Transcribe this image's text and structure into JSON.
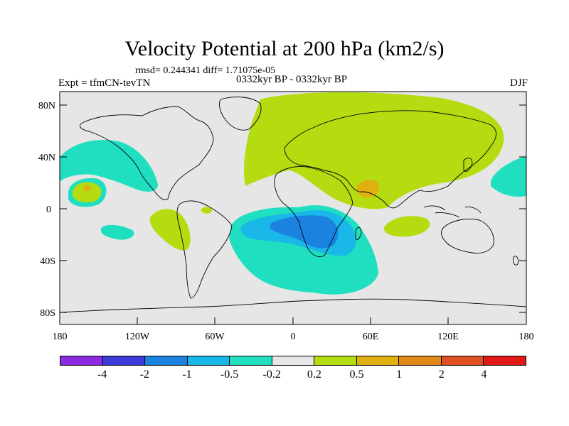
{
  "title": "Velocity Potential at 200 hPa (km2/s)",
  "stats": "rmsd= 0.244341 diff= 1.71075e-05",
  "expt": "Expt = tfmCN-tevTN",
  "period": "0332kyr BP - 0332kyr BP",
  "season": "DJF",
  "map": {
    "projection": "cylindrical-equidistant",
    "lon_range": [
      -180,
      180
    ],
    "lat_range": [
      -90,
      90
    ],
    "background_fill": "#e6e6e6",
    "lat_ticks": [
      "80N",
      "40N",
      "0",
      "40S",
      "80S"
    ],
    "lon_ticks": [
      "180",
      "120W",
      "60W",
      "0",
      "60E",
      "120E",
      "180"
    ]
  },
  "colorbar": {
    "colors": [
      "#8a2be2",
      "#3a3ad8",
      "#1b82e0",
      "#19b8e8",
      "#20dfc0",
      "#e6e6e6",
      "#b5dc10",
      "#e0b010",
      "#e08818",
      "#e05020",
      "#e01818"
    ],
    "labels": [
      "-4",
      "-2",
      "-1",
      "-0.5",
      "-0.2",
      "0.2",
      "0.5",
      "1",
      "2",
      "4"
    ]
  }
}
